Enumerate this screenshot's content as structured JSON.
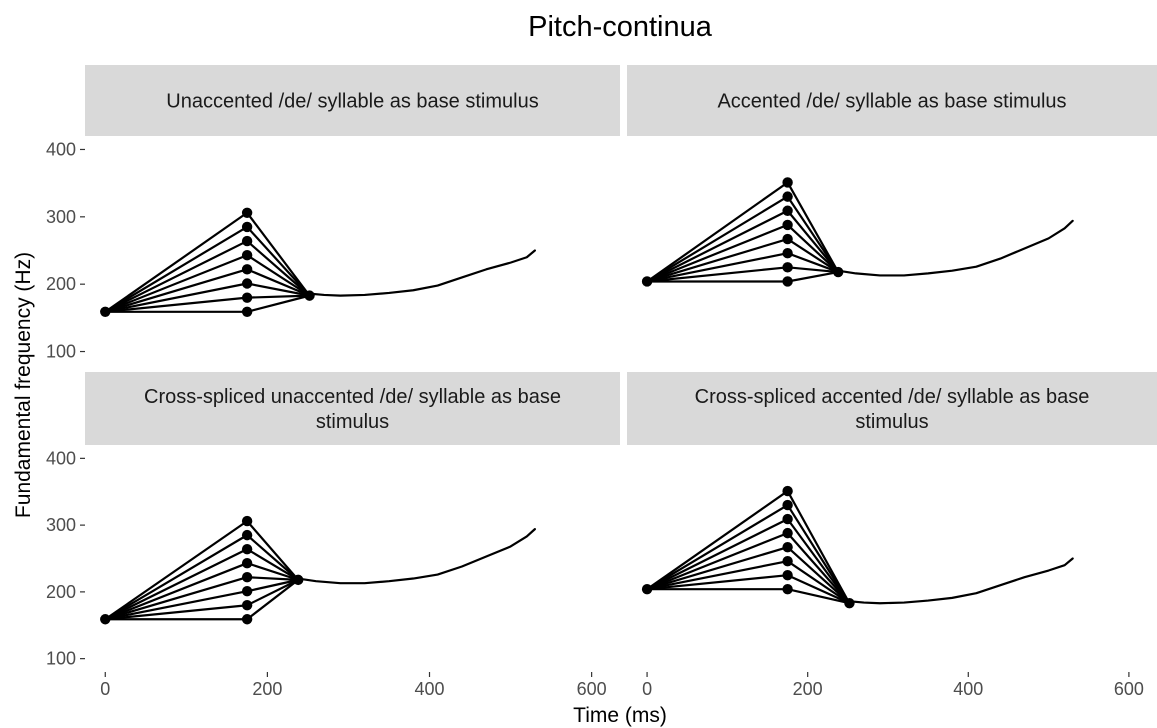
{
  "chart_data": {
    "type": "line",
    "title": "Pitch-continua",
    "xlabel": "Time (ms)",
    "ylabel": "Fundamental frequency (Hz)",
    "xlim": [
      -25,
      635
    ],
    "ylim": [
      80,
      420
    ],
    "x_ticks": [
      0,
      200,
      400,
      600
    ],
    "y_ticks": [
      100,
      200,
      300,
      400
    ],
    "grid": false,
    "panels": [
      {
        "id": "p1",
        "strip": [
          "Unaccented /de/ syllable as base stimulus"
        ],
        "start": {
          "x": 0,
          "y": 159
        },
        "peak_x": 175,
        "peak_values": [
          159,
          180,
          201,
          222,
          243,
          264,
          285,
          306
        ],
        "end": {
          "x": 252,
          "y": 183
        },
        "contour": {
          "x": [
            252,
            270,
            290,
            320,
            350,
            380,
            410,
            440,
            470,
            500,
            520,
            530
          ],
          "y": [
            186,
            184,
            183,
            184,
            187,
            191,
            198,
            210,
            222,
            232,
            240,
            250
          ]
        }
      },
      {
        "id": "p2",
        "strip": [
          "Accented /de/ syllable as base stimulus"
        ],
        "start": {
          "x": 0,
          "y": 204
        },
        "peak_x": 175,
        "peak_values": [
          204,
          225,
          246,
          267,
          288,
          309,
          330,
          351
        ],
        "end": {
          "x": 238,
          "y": 218
        },
        "contour": {
          "x": [
            238,
            260,
            290,
            320,
            350,
            380,
            410,
            440,
            470,
            500,
            520,
            530
          ],
          "y": [
            220,
            216,
            213,
            213,
            216,
            220,
            226,
            238,
            253,
            268,
            283,
            294
          ]
        }
      },
      {
        "id": "p3",
        "strip": [
          "Cross-spliced unaccented /de/ syllable as base",
          "stimulus"
        ],
        "start": {
          "x": 0,
          "y": 159
        },
        "peak_x": 175,
        "peak_values": [
          159,
          180,
          201,
          222,
          243,
          264,
          285,
          306
        ],
        "end": {
          "x": 238,
          "y": 218
        },
        "contour": {
          "x": [
            238,
            260,
            290,
            320,
            350,
            380,
            410,
            440,
            470,
            500,
            520,
            530
          ],
          "y": [
            220,
            216,
            213,
            213,
            216,
            220,
            226,
            238,
            253,
            268,
            283,
            294
          ]
        }
      },
      {
        "id": "p4",
        "strip": [
          "Cross-spliced accented /de/ syllable as base",
          "stimulus"
        ],
        "start": {
          "x": 0,
          "y": 204
        },
        "peak_x": 175,
        "peak_values": [
          204,
          225,
          246,
          267,
          288,
          309,
          330,
          351
        ],
        "end": {
          "x": 252,
          "y": 183
        },
        "contour": {
          "x": [
            252,
            270,
            290,
            320,
            350,
            380,
            410,
            440,
            470,
            500,
            520,
            530
          ],
          "y": [
            186,
            184,
            183,
            184,
            187,
            191,
            198,
            210,
            222,
            232,
            240,
            250
          ]
        }
      }
    ]
  }
}
